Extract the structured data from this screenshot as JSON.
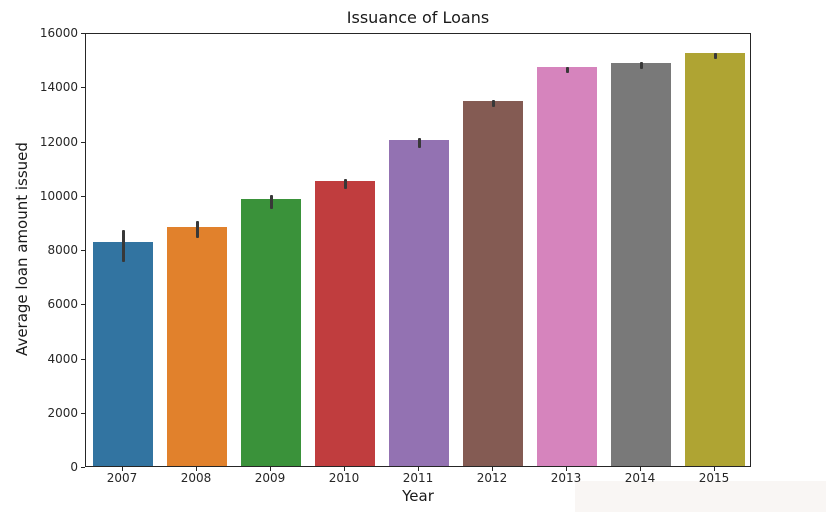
{
  "chart_data": {
    "type": "bar",
    "title": "Issuance of Loans",
    "xlabel": "Year",
    "ylabel": "Average loan amount issued",
    "categories": [
      "2007",
      "2008",
      "2009",
      "2010",
      "2011",
      "2012",
      "2013",
      "2014",
      "2015"
    ],
    "values": [
      8260,
      8810,
      9840,
      10510,
      12020,
      13460,
      14710,
      14860,
      15230
    ],
    "error_low": [
      7600,
      8480,
      9550,
      10290,
      11800,
      13310,
      14560,
      14710,
      15080
    ],
    "error_high": [
      8780,
      9110,
      10070,
      10660,
      12170,
      13570,
      14780,
      14970,
      15300
    ],
    "bar_colors": [
      "#3274a1",
      "#e1812c",
      "#3a923a",
      "#c03d3e",
      "#9372b2",
      "#845b53",
      "#d684bd",
      "#797979",
      "#afa433"
    ],
    "error_bar_color": "#383838",
    "yticks": [
      0,
      2000,
      4000,
      6000,
      8000,
      10000,
      12000,
      14000,
      16000
    ],
    "ylim": [
      0,
      16000
    ],
    "grid": false,
    "legend": null,
    "axis_color": "#262626",
    "background": "#ffffff"
  }
}
